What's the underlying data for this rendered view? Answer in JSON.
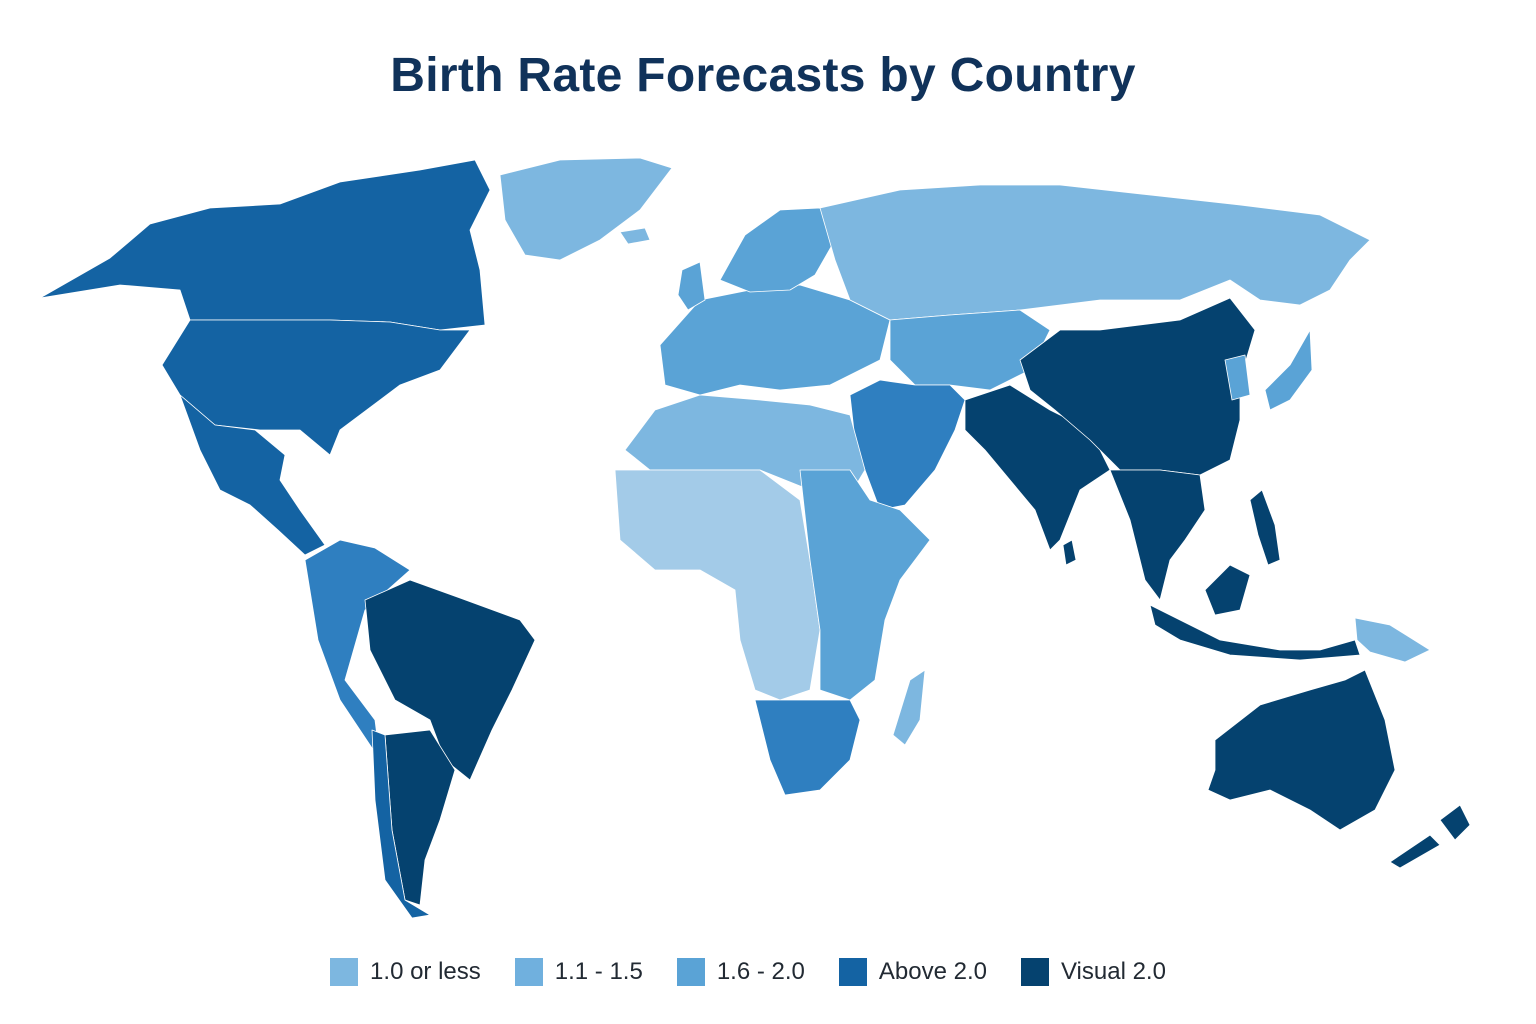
{
  "title": "Birth Rate Forecasts by Country",
  "colors": {
    "c1": "#a3cbe8",
    "c2": "#7db7e0",
    "c3": "#5aa3d6",
    "c4": "#2f7fc0",
    "c5": "#1463a3",
    "c6": "#05426f"
  },
  "legend": [
    {
      "label": "1.0 or less",
      "color": "#7db7e0"
    },
    {
      "label": "1.1 - 1.5",
      "color": "#70b0de"
    },
    {
      "label": "1.6 - 2.0",
      "color": "#5aa3d6"
    },
    {
      "label": "Above 2.0",
      "color": "#1463a3"
    },
    {
      "label": "Visual 2.0",
      "color": "#05426f"
    }
  ],
  "regions": [
    {
      "name": "canada",
      "color": "#1463a3"
    },
    {
      "name": "usa",
      "color": "#1463a3"
    },
    {
      "name": "mexico-central-america",
      "color": "#1463a3"
    },
    {
      "name": "greenland",
      "color": "#7db7e0"
    },
    {
      "name": "iceland",
      "color": "#7db7e0"
    },
    {
      "name": "north-south-america",
      "color": "#2f7fc0"
    },
    {
      "name": "brazil",
      "color": "#05426f"
    },
    {
      "name": "argentina",
      "color": "#05426f"
    },
    {
      "name": "chile",
      "color": "#1463a3"
    },
    {
      "name": "europe",
      "color": "#5aa3d6"
    },
    {
      "name": "scandinavia",
      "color": "#5aa3d6"
    },
    {
      "name": "uk",
      "color": "#5aa3d6"
    },
    {
      "name": "russia",
      "color": "#7db7e0"
    },
    {
      "name": "central-asia",
      "color": "#5aa3d6"
    },
    {
      "name": "middle-east",
      "color": "#2f7fc0"
    },
    {
      "name": "north-africa",
      "color": "#7db7e0"
    },
    {
      "name": "west-central-africa",
      "color": "#a3cbe8"
    },
    {
      "name": "east-africa",
      "color": "#5aa3d6"
    },
    {
      "name": "southern-africa",
      "color": "#2f7fc0"
    },
    {
      "name": "madagascar",
      "color": "#7db7e0"
    },
    {
      "name": "south-asia",
      "color": "#05426f"
    },
    {
      "name": "sri-lanka",
      "color": "#05426f"
    },
    {
      "name": "china",
      "color": "#05426f"
    },
    {
      "name": "southeast-asia",
      "color": "#05426f"
    },
    {
      "name": "korea-japan",
      "color": "#5aa3d6"
    },
    {
      "name": "indonesia",
      "color": "#05426f"
    },
    {
      "name": "philippines",
      "color": "#05426f"
    },
    {
      "name": "papua-new-guinea",
      "color": "#7db7e0"
    },
    {
      "name": "australia",
      "color": "#05426f"
    },
    {
      "name": "new-zealand",
      "color": "#05426f"
    }
  ]
}
